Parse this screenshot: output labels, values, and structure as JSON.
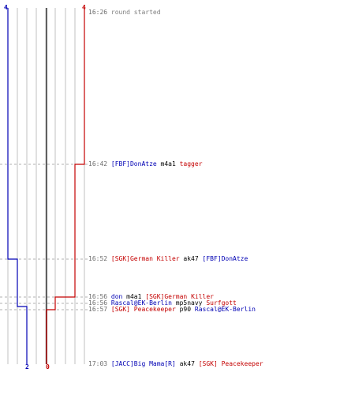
{
  "colors": {
    "team_blue": "#0000b4",
    "team_red": "#c40000",
    "grid": "#c0c0c0",
    "center_line": "#606060",
    "dashed": "#b0b0b0",
    "time_text": "#6b6b6b"
  },
  "scores": {
    "blue_start": "4",
    "red_start": "4",
    "blue_end": "2",
    "red_end": "0"
  },
  "events": [
    {
      "time": "16:26",
      "parts": [
        {
          "text": "round started",
          "team": "gray"
        }
      ]
    },
    {
      "time": "16:42",
      "parts": [
        {
          "text": "[FBF]DonAtze",
          "team": "blue"
        },
        {
          "text": " m4a1 ",
          "team": "plain"
        },
        {
          "text": "tagger",
          "team": "red"
        }
      ]
    },
    {
      "time": "16:52",
      "parts": [
        {
          "text": "[SGK]German Killer",
          "team": "red"
        },
        {
          "text": " ak47 ",
          "team": "plain"
        },
        {
          "text": "[FBF]DonAtze",
          "team": "blue"
        }
      ]
    },
    {
      "time": "16:56",
      "parts": [
        {
          "text": "don",
          "team": "blue"
        },
        {
          "text": " m4a1 ",
          "team": "plain"
        },
        {
          "text": "[SGK]German Killer",
          "team": "red"
        }
      ]
    },
    {
      "time": "16:56",
      "parts": [
        {
          "text": "Rascal@EK-Berlin",
          "team": "blue"
        },
        {
          "text": " mp5navy ",
          "team": "plain"
        },
        {
          "text": "Surfgott",
          "team": "red"
        }
      ]
    },
    {
      "time": "16:57",
      "parts": [
        {
          "text": "[SGK] Peacekeeper",
          "team": "red"
        },
        {
          "text": " p90 ",
          "team": "plain"
        },
        {
          "text": "Rascal@EK-Berlin",
          "team": "blue"
        }
      ]
    },
    {
      "time": "17:03",
      "parts": [
        {
          "text": "[JACC]Big Mama[R]",
          "team": "blue"
        },
        {
          "text": " ak47 ",
          "team": "plain"
        },
        {
          "text": "[SGK] Peacekeeper",
          "team": "red"
        }
      ]
    }
  ]
}
